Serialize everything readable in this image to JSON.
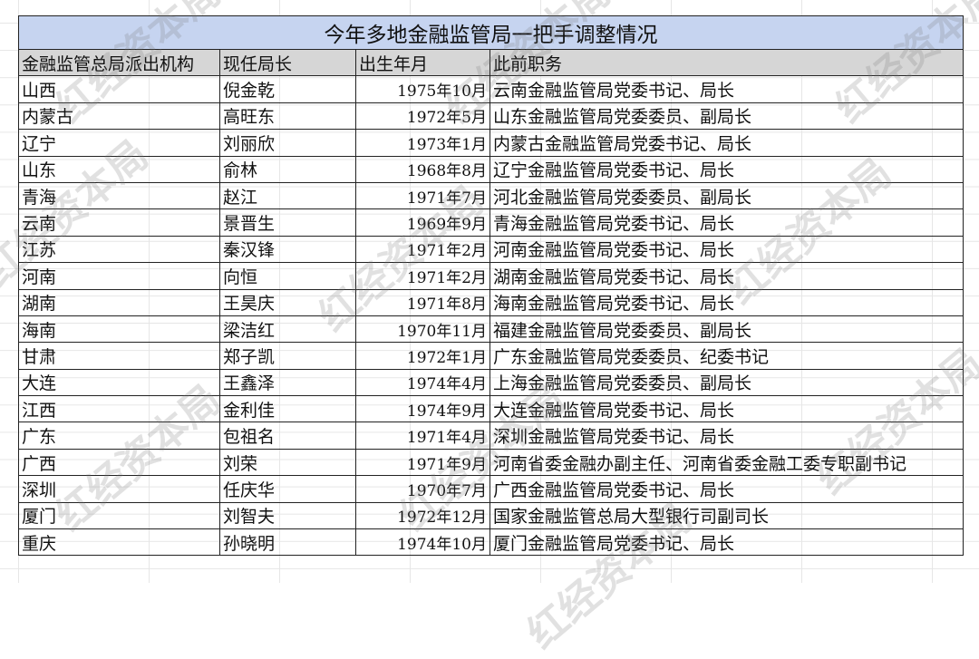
{
  "title": "今年多地金融监管局一把手调整情况",
  "headers": [
    "金融监管总局派出机构",
    "现任局长",
    "出生年月",
    "此前职务"
  ],
  "rows": [
    [
      "山西",
      "倪金乾",
      "1975年10月",
      "云南金融监管局党委书记、局长"
    ],
    [
      "内蒙古",
      "高旺东",
      "1972年5月",
      "山东金融监管局党委委员、副局长"
    ],
    [
      "辽宁",
      "刘丽欣",
      "1973年1月",
      "内蒙古金融监管局党委书记、局长"
    ],
    [
      "山东",
      "俞林",
      "1968年8月",
      "辽宁金融监管局党委书记、局长"
    ],
    [
      "青海",
      "赵江",
      "1971年7月",
      "河北金融监管局党委委员、副局长"
    ],
    [
      "云南",
      "景晋生",
      "1969年9月",
      "青海金融监管局党委书记、局长"
    ],
    [
      "江苏",
      "秦汉锋",
      "1971年2月",
      "河南金融监管局党委书记、局长"
    ],
    [
      "河南",
      "向恒",
      "1971年2月",
      "湖南金融监管局党委书记、局长"
    ],
    [
      "湖南",
      "王昊庆",
      "1971年8月",
      "海南金融监管局党委书记、局长"
    ],
    [
      "海南",
      "梁洁红",
      "1970年11月",
      "福建金融监管局党委委员、副局长"
    ],
    [
      "甘肃",
      "郑子凯",
      "1972年1月",
      "广东金融监管局党委委员、纪委书记"
    ],
    [
      "大连",
      "王鑫泽",
      "1974年4月",
      "上海金融监管局党委委员、副局长"
    ],
    [
      "江西",
      "金利佳",
      "1974年9月",
      "大连金融监管局党委书记、局长"
    ],
    [
      "广东",
      "包祖名",
      "1971年4月",
      "深圳金融监管局党委书记、局长"
    ],
    [
      "广西",
      "刘荣",
      "1971年9月",
      "河南省委金融办副主任、河南省委金融工委专职副书记"
    ],
    [
      "深圳",
      "任庆华",
      "1970年7月",
      "广西金融监管局党委书记、局长"
    ],
    [
      "厦门",
      "刘智夫",
      "1972年12月",
      "国家金融监管总局大型银行司副司长"
    ],
    [
      "重庆",
      "孙晓明",
      "1974年10月",
      "厦门金融监管局党委书记、局长"
    ]
  ],
  "watermark": "红经资本局",
  "colors": {
    "title_bg": "#c6d4f0",
    "header_bg": "#d6d6d6"
  }
}
